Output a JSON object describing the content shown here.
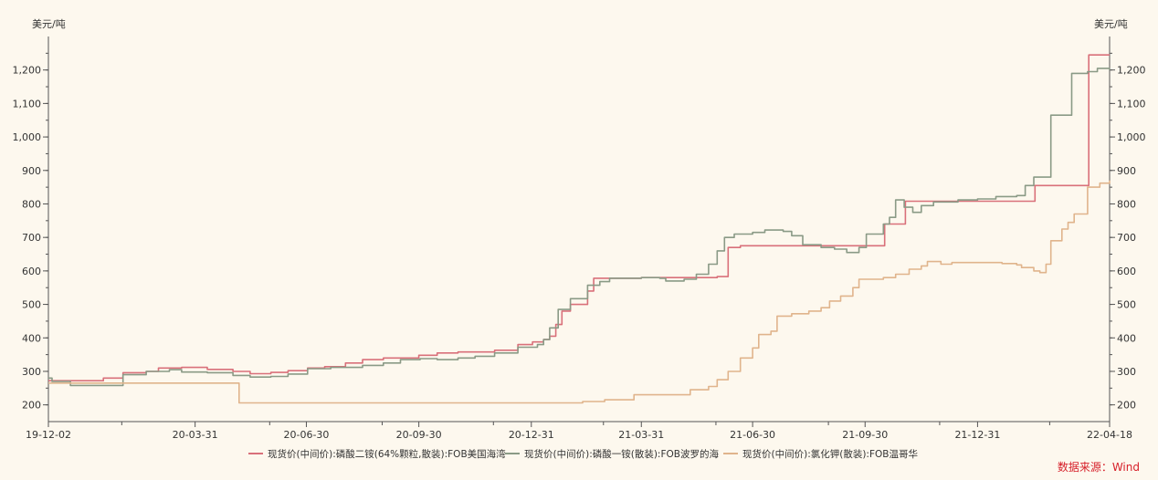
{
  "chart_data": {
    "type": "line",
    "y_unit_left": "美元/吨",
    "y_unit_right": "美元/吨",
    "ylim": [
      150,
      1300
    ],
    "yticks": [
      200,
      300,
      400,
      500,
      600,
      700,
      800,
      900,
      1000,
      1100,
      1200
    ],
    "ytick_labels": [
      "200",
      "300",
      "400",
      "500",
      "600",
      "700",
      "800",
      "900",
      "1,000",
      "1,100",
      "1,200"
    ],
    "xlim": [
      "2019-12-02",
      "2022-04-18"
    ],
    "xticks": [
      "2019-12-02",
      "2020-03-31",
      "2020-06-30",
      "2020-09-30",
      "2020-12-31",
      "2021-03-31",
      "2021-06-30",
      "2021-09-30",
      "2021-12-31",
      "2022-04-18"
    ],
    "xtick_labels": [
      "19-12-02",
      "20-03-31",
      "20-06-30",
      "20-09-30",
      "20-12-31",
      "21-03-31",
      "21-06-30",
      "21-09-30",
      "21-12-31",
      "22-04-18"
    ],
    "legend_position": "bottom",
    "series": [
      {
        "name": "现货价(中间价):磷酸二铵(64%颗粒,散装):FOB美国海湾",
        "color": "#d9707a",
        "points": [
          [
            "2019-12-02",
            272
          ],
          [
            "2020-01-15",
            272
          ],
          [
            "2020-01-16",
            280
          ],
          [
            "2020-02-01",
            296
          ],
          [
            "2020-02-20",
            300
          ],
          [
            "2020-03-01",
            310
          ],
          [
            "2020-03-20",
            312
          ],
          [
            "2020-04-10",
            306
          ],
          [
            "2020-05-01",
            300
          ],
          [
            "2020-05-15",
            293
          ],
          [
            "2020-06-01",
            297
          ],
          [
            "2020-06-15",
            302
          ],
          [
            "2020-07-01",
            310
          ],
          [
            "2020-07-15",
            314
          ],
          [
            "2020-08-01",
            325
          ],
          [
            "2020-08-15",
            335
          ],
          [
            "2020-09-01",
            340
          ],
          [
            "2020-09-30",
            348
          ],
          [
            "2020-10-15",
            355
          ],
          [
            "2020-11-01",
            358
          ],
          [
            "2020-12-01",
            363
          ],
          [
            "2020-12-20",
            380
          ],
          [
            "2021-01-01",
            388
          ],
          [
            "2021-01-10",
            395
          ],
          [
            "2021-01-15",
            405
          ],
          [
            "2021-01-20",
            440
          ],
          [
            "2021-01-25",
            480
          ],
          [
            "2021-02-01",
            500
          ],
          [
            "2021-02-15",
            540
          ],
          [
            "2021-02-20",
            578
          ],
          [
            "2021-03-31",
            580
          ],
          [
            "2021-06-01",
            583
          ],
          [
            "2021-06-10",
            670
          ],
          [
            "2021-06-20",
            675
          ],
          [
            "2021-10-15",
            675
          ],
          [
            "2021-10-16",
            740
          ],
          [
            "2021-11-01",
            740
          ],
          [
            "2021-11-02",
            808
          ],
          [
            "2022-02-15",
            808
          ],
          [
            "2022-02-16",
            855
          ],
          [
            "2022-03-31",
            855
          ],
          [
            "2022-04-01",
            1245
          ],
          [
            "2022-04-18",
            1245
          ]
        ]
      },
      {
        "name": "现货价(中间价):磷酸一铵(散装):FOB波罗的海",
        "color": "#8a9a86",
        "points": [
          [
            "2019-12-02",
            280
          ],
          [
            "2019-12-05",
            270
          ],
          [
            "2019-12-20",
            258
          ],
          [
            "2020-01-15",
            258
          ],
          [
            "2020-02-01",
            290
          ],
          [
            "2020-02-20",
            300
          ],
          [
            "2020-03-10",
            305
          ],
          [
            "2020-03-20",
            298
          ],
          [
            "2020-04-10",
            296
          ],
          [
            "2020-05-01",
            288
          ],
          [
            "2020-05-15",
            283
          ],
          [
            "2020-06-01",
            285
          ],
          [
            "2020-06-15",
            292
          ],
          [
            "2020-07-01",
            308
          ],
          [
            "2020-07-20",
            312
          ],
          [
            "2020-08-15",
            318
          ],
          [
            "2020-09-01",
            325
          ],
          [
            "2020-09-15",
            335
          ],
          [
            "2020-10-01",
            338
          ],
          [
            "2020-10-15",
            335
          ],
          [
            "2020-11-01",
            340
          ],
          [
            "2020-11-15",
            345
          ],
          [
            "2020-12-01",
            355
          ],
          [
            "2020-12-20",
            372
          ],
          [
            "2021-01-05",
            380
          ],
          [
            "2021-01-10",
            395
          ],
          [
            "2021-01-15",
            430
          ],
          [
            "2021-01-22",
            485
          ],
          [
            "2021-02-01",
            517
          ],
          [
            "2021-02-15",
            557
          ],
          [
            "2021-02-25",
            568
          ],
          [
            "2021-03-05",
            578
          ],
          [
            "2021-03-31",
            580
          ],
          [
            "2021-04-15",
            578
          ],
          [
            "2021-04-20",
            570
          ],
          [
            "2021-05-05",
            575
          ],
          [
            "2021-05-15",
            590
          ],
          [
            "2021-05-25",
            620
          ],
          [
            "2021-06-01",
            660
          ],
          [
            "2021-06-07",
            700
          ],
          [
            "2021-06-15",
            710
          ],
          [
            "2021-06-30",
            715
          ],
          [
            "2021-07-10",
            722
          ],
          [
            "2021-07-25",
            718
          ],
          [
            "2021-08-01",
            705
          ],
          [
            "2021-08-10",
            678
          ],
          [
            "2021-08-25",
            670
          ],
          [
            "2021-09-05",
            665
          ],
          [
            "2021-09-15",
            655
          ],
          [
            "2021-09-25",
            670
          ],
          [
            "2021-10-01",
            710
          ],
          [
            "2021-10-15",
            740
          ],
          [
            "2021-10-20",
            760
          ],
          [
            "2021-10-25",
            812
          ],
          [
            "2021-11-01",
            790
          ],
          [
            "2021-11-08",
            775
          ],
          [
            "2021-11-15",
            795
          ],
          [
            "2021-11-25",
            806
          ],
          [
            "2021-12-15",
            812
          ],
          [
            "2021-12-31",
            815
          ],
          [
            "2022-01-15",
            822
          ],
          [
            "2022-02-01",
            825
          ],
          [
            "2022-02-08",
            855
          ],
          [
            "2022-02-15",
            880
          ],
          [
            "2022-02-25",
            880
          ],
          [
            "2022-03-01",
            1065
          ],
          [
            "2022-03-15",
            1065
          ],
          [
            "2022-03-18",
            1190
          ],
          [
            "2022-03-31",
            1195
          ],
          [
            "2022-04-08",
            1205
          ],
          [
            "2022-04-18",
            1200
          ]
        ]
      },
      {
        "name": "现货价(中间价):氯化钾(散装):FOB温哥华",
        "color": "#e0b48c",
        "points": [
          [
            "2019-12-02",
            265
          ],
          [
            "2020-05-05",
            265
          ],
          [
            "2020-05-06",
            206
          ],
          [
            "2021-02-10",
            206
          ],
          [
            "2021-02-11",
            210
          ],
          [
            "2021-03-01",
            215
          ],
          [
            "2021-03-20",
            215
          ],
          [
            "2021-03-25",
            230
          ],
          [
            "2021-05-01",
            230
          ],
          [
            "2021-05-10",
            245
          ],
          [
            "2021-05-25",
            255
          ],
          [
            "2021-06-01",
            275
          ],
          [
            "2021-06-10",
            300
          ],
          [
            "2021-06-20",
            340
          ],
          [
            "2021-06-30",
            370
          ],
          [
            "2021-07-05",
            410
          ],
          [
            "2021-07-15",
            420
          ],
          [
            "2021-07-20",
            465
          ],
          [
            "2021-08-01",
            472
          ],
          [
            "2021-08-15",
            480
          ],
          [
            "2021-08-25",
            490
          ],
          [
            "2021-09-01",
            510
          ],
          [
            "2021-09-10",
            525
          ],
          [
            "2021-09-20",
            550
          ],
          [
            "2021-09-25",
            575
          ],
          [
            "2021-10-15",
            580
          ],
          [
            "2021-10-25",
            590
          ],
          [
            "2021-11-05",
            605
          ],
          [
            "2021-11-15",
            615
          ],
          [
            "2021-11-20",
            628
          ],
          [
            "2021-12-01",
            620
          ],
          [
            "2021-12-10",
            625
          ],
          [
            "2022-01-01",
            625
          ],
          [
            "2022-01-20",
            622
          ],
          [
            "2022-02-01",
            618
          ],
          [
            "2022-02-05",
            610
          ],
          [
            "2022-02-15",
            600
          ],
          [
            "2022-02-20",
            595
          ],
          [
            "2022-02-25",
            620
          ],
          [
            "2022-03-01",
            690
          ],
          [
            "2022-03-10",
            725
          ],
          [
            "2022-03-15",
            745
          ],
          [
            "2022-03-20",
            770
          ],
          [
            "2022-03-31",
            850
          ],
          [
            "2022-04-10",
            862
          ],
          [
            "2022-04-18",
            870
          ]
        ]
      }
    ]
  },
  "source_text": "数据来源：Wind"
}
